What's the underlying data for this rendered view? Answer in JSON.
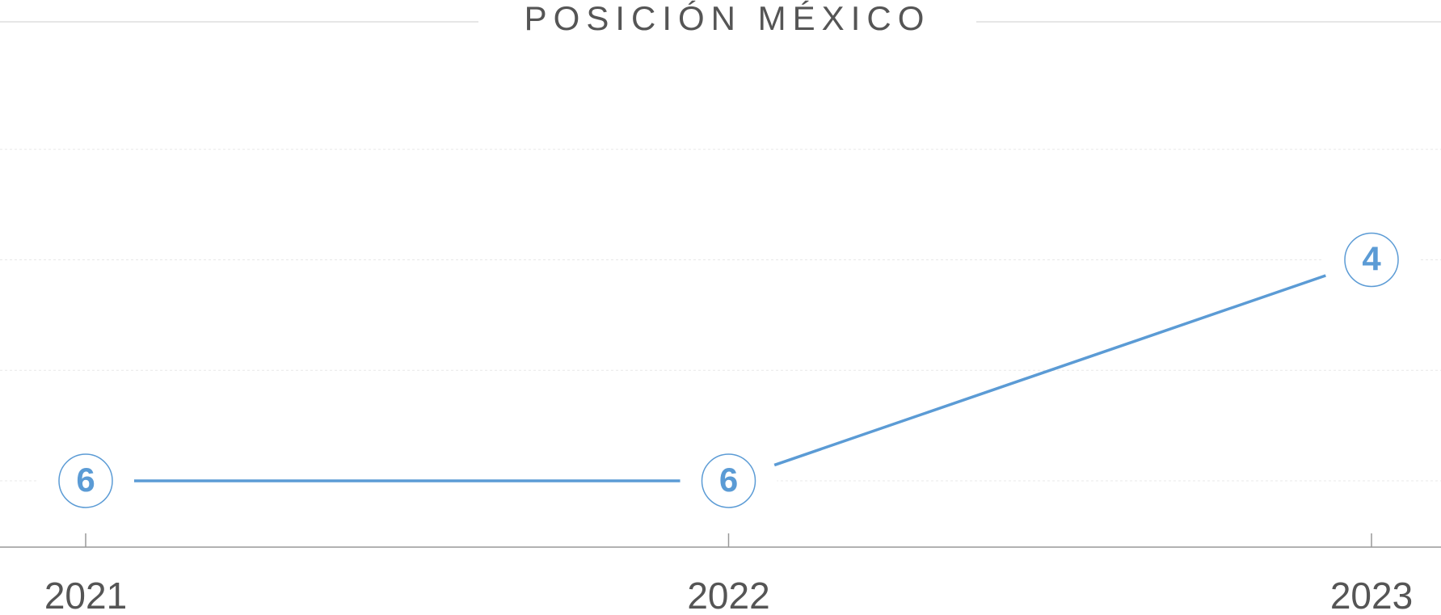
{
  "chart_data": {
    "type": "line",
    "title": "POSICIÓN MÉXICO",
    "categories": [
      "2021",
      "2022",
      "2023"
    ],
    "series": [
      {
        "color": "#5b9bd5",
        "values": [
          6,
          6,
          4
        ]
      }
    ],
    "ylim": [
      6.6,
      2.6
    ],
    "yticks": [
      3,
      4,
      5,
      6
    ],
    "grid": true
  }
}
